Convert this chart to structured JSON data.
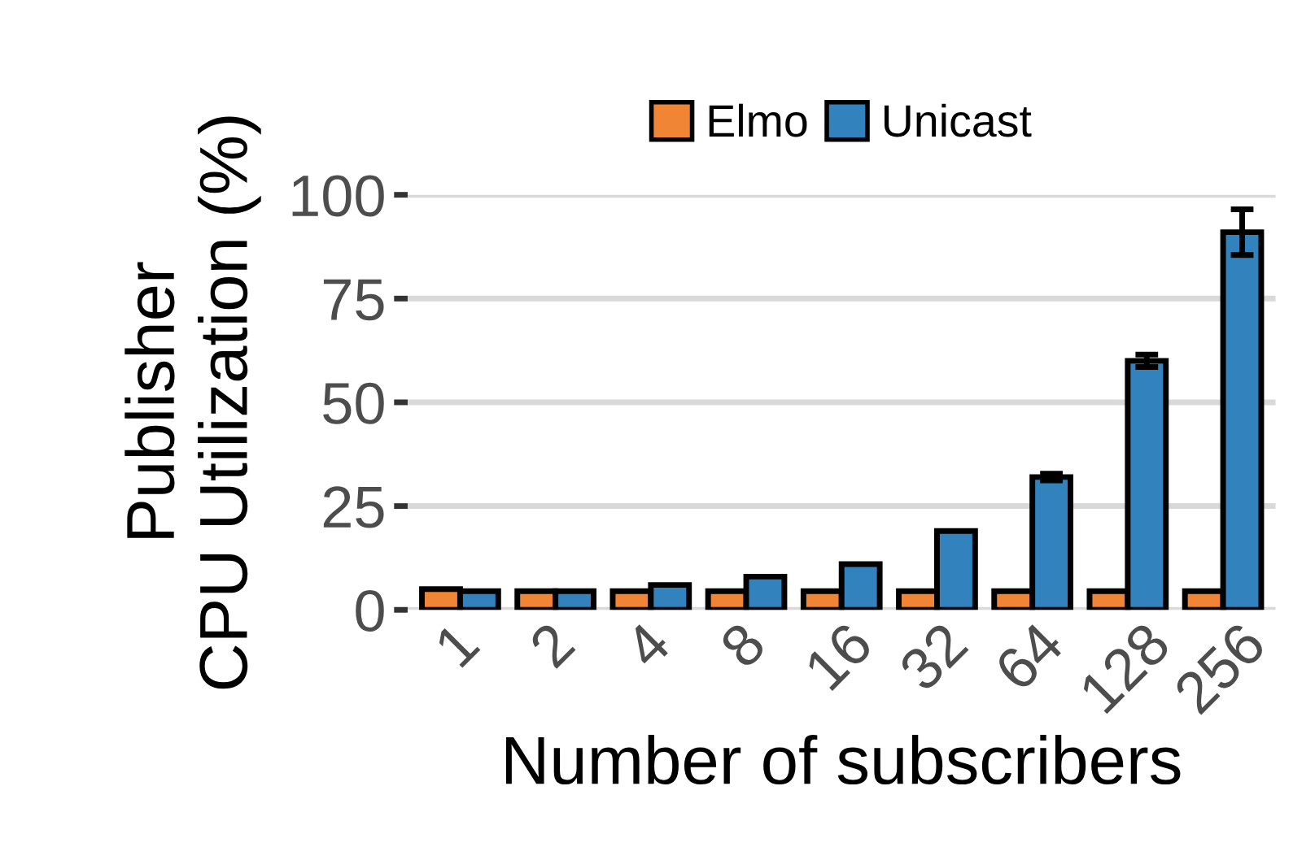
{
  "chart_data": {
    "type": "bar",
    "xlabel": "Number of subscribers",
    "ylabel": "Publisher\nCPU Utilization (%)",
    "categories": [
      "1",
      "2",
      "4",
      "8",
      "16",
      "32",
      "64",
      "128",
      "256"
    ],
    "series": [
      {
        "name": "Elmo",
        "color": "#f08536",
        "values": [
          5,
          4.5,
          4.5,
          4.5,
          4.5,
          4.5,
          4.5,
          4.5,
          4.5
        ]
      },
      {
        "name": "Unicast",
        "color": "#3182bd",
        "values": [
          4.5,
          4.5,
          6,
          8,
          11,
          19,
          32,
          60,
          91
        ],
        "errors": [
          null,
          null,
          null,
          null,
          null,
          null,
          0.8,
          1.5,
          5.5
        ]
      }
    ],
    "ylim": [
      0,
      100
    ],
    "yticks": [
      0,
      25,
      50,
      75,
      100
    ],
    "grid": "y",
    "legend": "top"
  }
}
